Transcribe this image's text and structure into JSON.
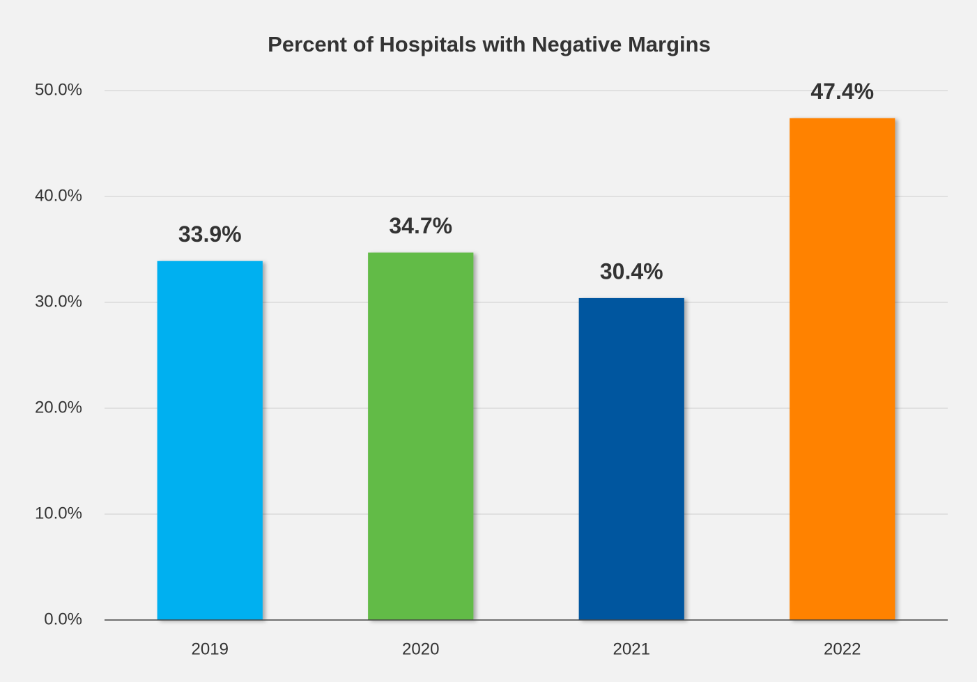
{
  "chart_data": {
    "type": "bar",
    "title": "Percent of Hospitals with Negative Margins",
    "categories": [
      "2019",
      "2020",
      "2021",
      "2022"
    ],
    "values": [
      33.9,
      34.7,
      30.4,
      47.4
    ],
    "value_labels": [
      "33.9%",
      "34.7%",
      "30.4%",
      "47.4%"
    ],
    "colors": [
      "#00b0f0",
      "#62bb46",
      "#00579f",
      "#ff8200"
    ],
    "ylim": [
      0,
      50
    ],
    "yticks": [
      {
        "value": 0,
        "label": "0.0%"
      },
      {
        "value": 10,
        "label": "10.0%"
      },
      {
        "value": 20,
        "label": "20.0%"
      },
      {
        "value": 30,
        "label": "30.0%"
      },
      {
        "value": 40,
        "label": "40.0%"
      },
      {
        "value": 50,
        "label": "50.0%"
      }
    ],
    "grid": true
  }
}
